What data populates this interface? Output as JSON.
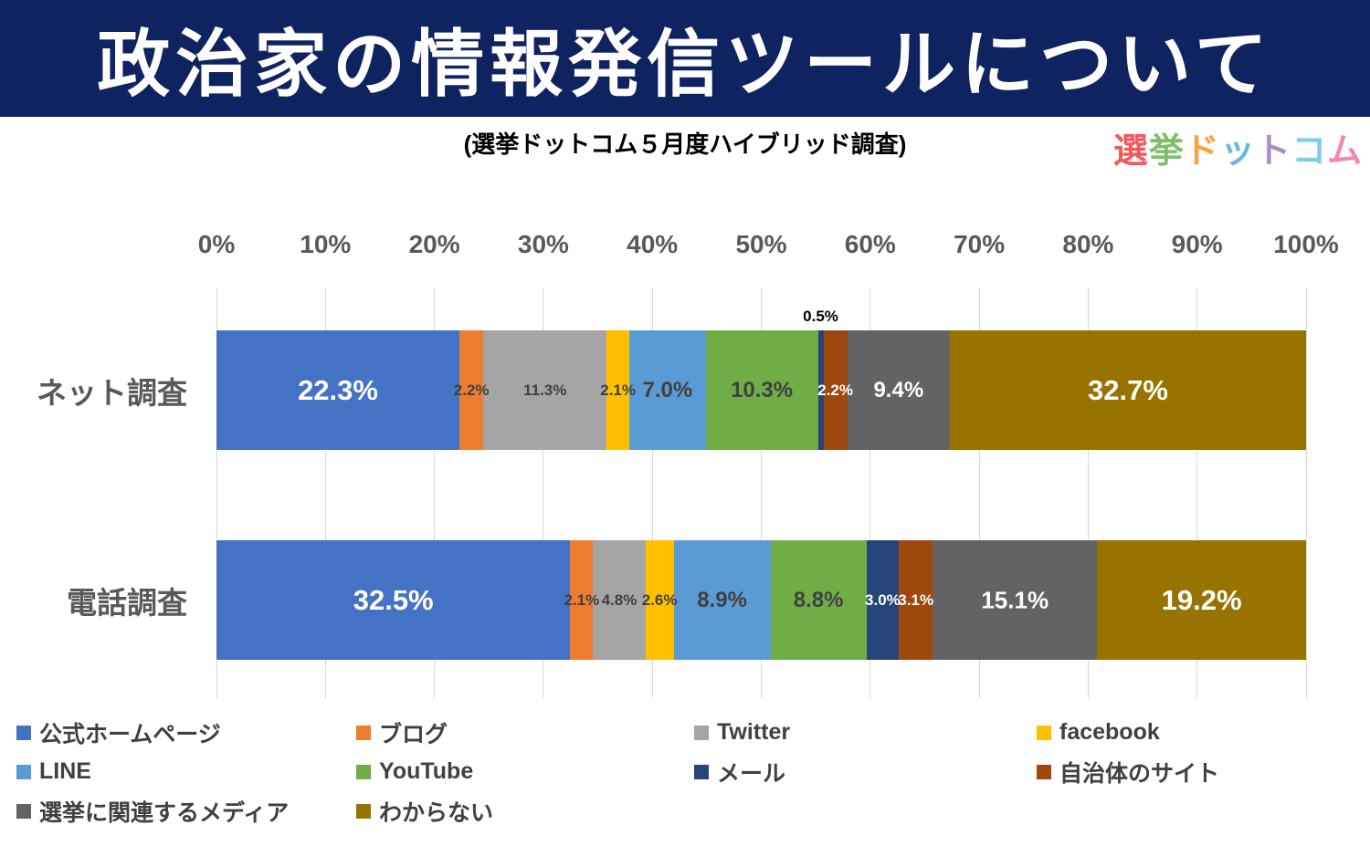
{
  "header": {
    "title": "政治家の情報発信ツールについて",
    "bg_color": "#0F2361",
    "text_color": "#FFFFFF"
  },
  "subtitle": "(選挙ドットコム５月度ハイブリッド調査)",
  "logo": {
    "text": "選挙ドットコム",
    "chars": [
      {
        "ch": "選",
        "color": "#F1595C"
      },
      {
        "ch": "挙",
        "color": "#7FBF6B"
      },
      {
        "ch": "ド",
        "color": "#F9A23C"
      },
      {
        "ch": "ッ",
        "color": "#64B9E4"
      },
      {
        "ch": "ト",
        "color": "#AC8CC8"
      },
      {
        "ch": "コ",
        "color": "#7FCBEF"
      },
      {
        "ch": "ム",
        "color": "#F287B7"
      }
    ]
  },
  "chart_data": {
    "type": "bar",
    "stacked": true,
    "orientation": "horizontal",
    "title": "政治家の情報発信ツールについて",
    "axis": {
      "ticks": [
        "0%",
        "10%",
        "20%",
        "30%",
        "40%",
        "50%",
        "60%",
        "70%",
        "80%",
        "90%",
        "100%"
      ],
      "min": 0,
      "max": 100,
      "grid": true,
      "grid_color": "#D9D9D9",
      "tick_color": "#595959"
    },
    "series": [
      {
        "name": "公式ホームページ",
        "color": "#4472C4"
      },
      {
        "name": "ブログ",
        "color": "#ED7D31"
      },
      {
        "name": "Twitter",
        "color": "#A5A5A5"
      },
      {
        "name": "facebook",
        "color": "#FFC000"
      },
      {
        "name": "LINE",
        "color": "#5B9BD5"
      },
      {
        "name": "YouTube",
        "color": "#70AD47"
      },
      {
        "name": "メール",
        "color": "#264478"
      },
      {
        "name": "自治体のサイト",
        "color": "#9E480E"
      },
      {
        "name": "選挙に関連するメディア",
        "color": "#636363"
      },
      {
        "name": "わからない",
        "color": "#997300"
      }
    ],
    "categories": [
      "ネット調査",
      "電話調査"
    ],
    "rows": [
      {
        "category": "ネット調査",
        "segments": [
          {
            "value": 22.3,
            "label": "22.3%",
            "size": "lg",
            "tone": "light"
          },
          {
            "value": 2.2,
            "label": "2.2%",
            "size": "sm",
            "tone": "dark"
          },
          {
            "value": 11.3,
            "label": "11.3%",
            "size": "sm",
            "tone": "dark"
          },
          {
            "value": 2.1,
            "label": "2.1%",
            "size": "sm",
            "tone": "dark"
          },
          {
            "value": 7.0,
            "label": "7.0%",
            "size": "md",
            "tone": "dark"
          },
          {
            "value": 10.3,
            "label": "10.3%",
            "size": "md",
            "tone": "dark"
          },
          {
            "value": 0.5,
            "label": "0.5%",
            "size": "sm",
            "tone": "outside"
          },
          {
            "value": 2.2,
            "label": "2.2%",
            "size": "sm",
            "tone": "light"
          },
          {
            "value": 9.4,
            "label": "9.4%",
            "size": "md",
            "tone": "light"
          },
          {
            "value": 32.7,
            "label": "32.7%",
            "size": "lg",
            "tone": "light"
          }
        ]
      },
      {
        "category": "電話調査",
        "segments": [
          {
            "value": 32.5,
            "label": "32.5%",
            "size": "lg",
            "tone": "light"
          },
          {
            "value": 2.1,
            "label": "2.1%",
            "size": "sm",
            "tone": "dark"
          },
          {
            "value": 4.8,
            "label": "4.8%",
            "size": "sm",
            "tone": "dark"
          },
          {
            "value": 2.6,
            "label": "2.6%",
            "size": "sm",
            "tone": "dark"
          },
          {
            "value": 8.9,
            "label": "8.9%",
            "size": "md",
            "tone": "dark"
          },
          {
            "value": 8.8,
            "label": "8.8%",
            "size": "md",
            "tone": "dark"
          },
          {
            "value": 3.0,
            "label": "3.0%",
            "size": "sm",
            "tone": "light"
          },
          {
            "value": 3.1,
            "label": "3.1%",
            "size": "sm",
            "tone": "light"
          },
          {
            "value": 15.1,
            "label": "15.1%",
            "size": "ml",
            "tone": "light"
          },
          {
            "value": 19.2,
            "label": "19.2%",
            "size": "lg",
            "tone": "light"
          }
        ]
      }
    ],
    "legend": {
      "position": "bottom",
      "columns": 4
    }
  },
  "label_colors": {
    "light": "#FFFFFF",
    "dark": "#404040",
    "outside": "#000000"
  },
  "category_label_color": "#595959",
  "legend_text_color": "#404040"
}
